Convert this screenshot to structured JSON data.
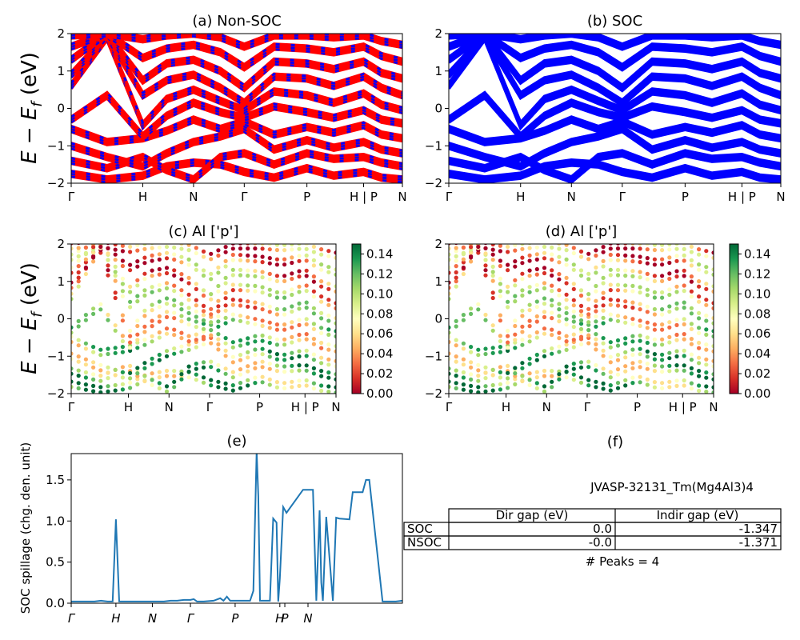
{
  "colors": {
    "nonsoc_line": "#ff0000",
    "nonsoc_dash": "#0000ff",
    "soc_line": "#0000ff",
    "spillage_line": "#1f77b4",
    "colormap": [
      "#a50026",
      "#d73027",
      "#f46d43",
      "#fdae61",
      "#fee08b",
      "#ffffbf",
      "#d9ef8b",
      "#a6d96a",
      "#66bd63",
      "#1a9850",
      "#006837"
    ]
  },
  "figure": {
    "ylabel": "E − E",
    "ylabel_sub": "f",
    "ylabel_unit": " (eV)"
  },
  "chart_data": [
    {
      "panel": "a",
      "type": "line",
      "title": "(a) Non-SOC",
      "ylim": [
        -2,
        2
      ],
      "yticks": [
        "2",
        "1",
        "0",
        "−1",
        "−2"
      ],
      "xticks": [
        {
          "label": "Γ",
          "x": 0.0
        },
        {
          "label": "H",
          "x": 1.2
        },
        {
          "label": "N",
          "x": 2.05
        },
        {
          "label": "Γ",
          "x": 2.9
        },
        {
          "label": "P",
          "x": 3.95
        },
        {
          "label": "H | P",
          "x": 4.9
        },
        {
          "label": "N",
          "x": 5.55
        }
      ],
      "xmax": 5.55,
      "bands": [
        [
          [
            0,
            -1.75
          ],
          [
            0.6,
            -1.9
          ],
          [
            1.2,
            -1.8
          ],
          [
            1.6,
            -1.55
          ],
          [
            2.05,
            -1.45
          ],
          [
            2.5,
            -1.5
          ],
          [
            2.9,
            -1.7
          ],
          [
            3.4,
            -1.85
          ],
          [
            3.95,
            -1.6
          ],
          [
            4.4,
            -1.8
          ],
          [
            4.9,
            -1.7
          ],
          [
            5.2,
            -1.85
          ],
          [
            5.55,
            -1.9
          ]
        ],
        [
          [
            0,
            -1.4
          ],
          [
            0.6,
            -1.6
          ],
          [
            1.2,
            -1.3
          ],
          [
            1.6,
            -1.65
          ],
          [
            2.05,
            -1.9
          ],
          [
            2.5,
            -1.3
          ],
          [
            2.9,
            -1.2
          ],
          [
            3.4,
            -1.5
          ],
          [
            3.95,
            -1.2
          ],
          [
            4.4,
            -1.35
          ],
          [
            4.9,
            -1.3
          ],
          [
            5.2,
            -1.45
          ],
          [
            5.55,
            -1.55
          ]
        ],
        [
          [
            0,
            -1.0
          ],
          [
            0.6,
            -1.3
          ],
          [
            1.2,
            -1.55
          ],
          [
            1.6,
            -1.2
          ],
          [
            2.05,
            -0.9
          ],
          [
            2.5,
            -0.75
          ],
          [
            2.9,
            -0.55
          ],
          [
            3.4,
            -1.1
          ],
          [
            3.95,
            -0.85
          ],
          [
            4.4,
            -1.05
          ],
          [
            4.9,
            -0.9
          ],
          [
            5.2,
            -1.1
          ],
          [
            5.55,
            -1.2
          ]
        ],
        [
          [
            0,
            -0.55
          ],
          [
            0.6,
            -0.9
          ],
          [
            1.2,
            -0.8
          ],
          [
            1.6,
            -0.6
          ],
          [
            2.05,
            -0.3
          ],
          [
            2.5,
            -0.55
          ],
          [
            2.9,
            -0.35
          ],
          [
            3.4,
            -0.7
          ],
          [
            3.95,
            -0.5
          ],
          [
            4.4,
            -0.65
          ],
          [
            4.9,
            -0.45
          ],
          [
            5.2,
            -0.7
          ],
          [
            5.55,
            -0.8
          ]
        ],
        [
          [
            0,
            -0.3
          ],
          [
            0.6,
            0.35
          ],
          [
            1.2,
            -0.75
          ],
          [
            1.6,
            -0.2
          ],
          [
            2.05,
            0.15
          ],
          [
            2.5,
            -0.1
          ],
          [
            2.9,
            -0.25
          ],
          [
            3.4,
            0.05
          ],
          [
            3.95,
            -0.1
          ],
          [
            4.4,
            -0.25
          ],
          [
            4.9,
            -0.05
          ],
          [
            5.2,
            -0.3
          ],
          [
            5.55,
            -0.4
          ]
        ],
        [
          [
            0,
            0.6
          ],
          [
            0.6,
            1.9
          ],
          [
            1.2,
            -0.45
          ],
          [
            1.6,
            0.25
          ],
          [
            2.05,
            0.5
          ],
          [
            2.5,
            0.2
          ],
          [
            2.9,
            -0.05
          ],
          [
            3.4,
            0.45
          ],
          [
            3.95,
            0.35
          ],
          [
            4.4,
            0.15
          ],
          [
            4.9,
            0.4
          ],
          [
            5.2,
            0.1
          ],
          [
            5.55,
            -0.05
          ]
        ],
        [
          [
            0,
            0.9
          ],
          [
            0.6,
            1.95
          ],
          [
            1.2,
            0.35
          ],
          [
            1.6,
            0.75
          ],
          [
            2.05,
            0.9
          ],
          [
            2.5,
            0.55
          ],
          [
            2.9,
            0.15
          ],
          [
            3.4,
            0.85
          ],
          [
            3.95,
            0.8
          ],
          [
            4.4,
            0.6
          ],
          [
            4.9,
            0.85
          ],
          [
            5.2,
            0.55
          ],
          [
            5.55,
            0.35
          ]
        ],
        [
          [
            0,
            1.3
          ],
          [
            0.6,
            2.0
          ],
          [
            1.2,
            0.75
          ],
          [
            1.6,
            1.2
          ],
          [
            2.05,
            1.3
          ],
          [
            2.5,
            1.0
          ],
          [
            2.9,
            0.55
          ],
          [
            3.4,
            1.25
          ],
          [
            3.95,
            1.2
          ],
          [
            4.4,
            1.05
          ],
          [
            4.9,
            1.25
          ],
          [
            5.2,
            0.95
          ],
          [
            5.55,
            0.8
          ]
        ],
        [
          [
            0,
            1.65
          ],
          [
            0.6,
            2.0
          ],
          [
            1.2,
            1.35
          ],
          [
            1.6,
            1.6
          ],
          [
            2.05,
            1.7
          ],
          [
            2.5,
            1.5
          ],
          [
            2.9,
            1.1
          ],
          [
            3.4,
            1.65
          ],
          [
            3.95,
            1.6
          ],
          [
            4.4,
            1.5
          ],
          [
            4.9,
            1.65
          ],
          [
            5.2,
            1.4
          ],
          [
            5.55,
            1.25
          ]
        ],
        [
          [
            0,
            1.95
          ],
          [
            0.6,
            2.0
          ],
          [
            1.2,
            1.85
          ],
          [
            1.6,
            1.95
          ],
          [
            2.05,
            2.0
          ],
          [
            2.5,
            1.9
          ],
          [
            2.9,
            1.65
          ],
          [
            3.4,
            1.95
          ],
          [
            3.95,
            1.95
          ],
          [
            4.4,
            1.9
          ],
          [
            4.9,
            1.95
          ],
          [
            5.2,
            1.8
          ],
          [
            5.55,
            1.7
          ]
        ]
      ]
    },
    {
      "panel": "b",
      "type": "line",
      "title": "(b) SOC",
      "ylim": [
        -2,
        2
      ],
      "yticks": [
        "2",
        "1",
        "0",
        "−1",
        "−2"
      ],
      "xticks": [
        {
          "label": "Γ",
          "x": 0.0
        },
        {
          "label": "H",
          "x": 1.2
        },
        {
          "label": "N",
          "x": 2.05
        },
        {
          "label": "Γ",
          "x": 2.9
        },
        {
          "label": "P",
          "x": 3.95
        },
        {
          "label": "H | P",
          "x": 4.9
        },
        {
          "label": "N",
          "x": 5.55
        }
      ],
      "xmax": 5.55,
      "same_bands_as": "a"
    },
    {
      "panel": "c",
      "type": "scatter",
      "title": "(c)  Al ['p']",
      "ylim": [
        -2,
        2
      ],
      "yticks": [
        "2",
        "1",
        "0",
        "−1",
        "−2"
      ],
      "xticks": [
        {
          "label": "Γ",
          "x": 0.0
        },
        {
          "label": "H",
          "x": 1.2
        },
        {
          "label": "N",
          "x": 2.05
        },
        {
          "label": "Γ",
          "x": 2.9
        },
        {
          "label": "P",
          "x": 3.95
        },
        {
          "label": "H | P",
          "x": 4.9
        },
        {
          "label": "N",
          "x": 5.55
        }
      ],
      "xmax": 5.55,
      "colorbar": {
        "min": 0.0,
        "max": 0.15,
        "ticks": [
          "0.14",
          "0.12",
          "0.10",
          "0.08",
          "0.06",
          "0.04",
          "0.02",
          "0.00"
        ]
      },
      "same_bands_as": "a"
    },
    {
      "panel": "d",
      "type": "scatter",
      "title": "(d) Al ['p']",
      "ylim": [
        -2,
        2
      ],
      "yticks": [
        "2",
        "1",
        "0",
        "−1",
        "−2"
      ],
      "xticks": [
        {
          "label": "Γ",
          "x": 0.0
        },
        {
          "label": "H",
          "x": 1.2
        },
        {
          "label": "N",
          "x": 2.05
        },
        {
          "label": "Γ",
          "x": 2.9
        },
        {
          "label": "P",
          "x": 3.95
        },
        {
          "label": "H | P",
          "x": 4.9
        },
        {
          "label": "N",
          "x": 5.55
        }
      ],
      "xmax": 5.55,
      "colorbar": {
        "min": 0.0,
        "max": 0.15,
        "ticks": [
          "0.14",
          "0.12",
          "0.10",
          "0.08",
          "0.06",
          "0.04",
          "0.02",
          "0.00"
        ]
      },
      "same_bands_as": "a"
    },
    {
      "panel": "e",
      "type": "line",
      "title": "(e)",
      "ylabel": "SOC spillage (chg. den. unit)",
      "ylim": [
        0,
        1.82
      ],
      "yticks": [
        {
          "label": "0.0",
          "v": 0.0
        },
        {
          "label": "0.5",
          "v": 0.5
        },
        {
          "label": "1.0",
          "v": 1.0
        },
        {
          "label": "1.5",
          "v": 1.5
        }
      ],
      "xlim": [
        0,
        100
      ],
      "xticks": [
        {
          "label": "Γ",
          "x": 0
        },
        {
          "label": "H",
          "x": 13.5
        },
        {
          "label": "N",
          "x": 24.5
        },
        {
          "label": "Γ",
          "x": 36
        },
        {
          "label": "P",
          "x": 49.5
        },
        {
          "label": "H",
          "x": 63
        },
        {
          "label": "P",
          "x": 64.5
        },
        {
          "label": "N",
          "x": 71.5
        }
      ],
      "x": [
        0,
        4,
        7,
        9,
        11,
        12,
        12.5,
        13.5,
        14.5,
        16,
        20,
        25,
        28,
        30,
        32,
        34,
        36,
        37,
        38,
        40,
        43,
        45,
        46,
        47,
        48,
        50,
        53,
        54,
        55,
        56,
        56.5,
        57,
        58,
        60,
        61,
        62,
        62.5,
        63,
        64,
        65,
        70,
        72,
        72.5,
        73,
        74,
        75,
        75.5,
        76,
        77,
        79,
        80,
        81,
        84,
        85,
        88,
        89,
        90,
        94,
        98,
        100
      ],
      "values": [
        0.02,
        0.02,
        0.02,
        0.03,
        0.02,
        0.02,
        0.02,
        1.02,
        0.02,
        0.02,
        0.02,
        0.02,
        0.02,
        0.03,
        0.03,
        0.04,
        0.04,
        0.05,
        0.02,
        0.02,
        0.03,
        0.06,
        0.03,
        0.08,
        0.03,
        0.03,
        0.03,
        0.03,
        0.15,
        1.85,
        1.3,
        0.03,
        0.03,
        0.03,
        1.03,
        0.98,
        0.02,
        0.3,
        1.17,
        1.1,
        1.38,
        1.38,
        1.38,
        1.38,
        0.03,
        1.13,
        0.25,
        0.03,
        1.05,
        0.03,
        1.04,
        1.03,
        1.02,
        1.35,
        1.35,
        1.5,
        1.5,
        0.02,
        0.02,
        0.03
      ]
    }
  ],
  "panel_f": {
    "title": "(f)",
    "identifier": "JVASP-32131_Tm(Mg4Al3)4",
    "table": {
      "col_labels": [
        "Dir gap (eV)",
        "Indir gap (eV)"
      ],
      "rows": [
        {
          "label": "SOC",
          "values": [
            "0.0",
            "-1.347"
          ]
        },
        {
          "label": "NSOC",
          "values": [
            "-0.0",
            "-1.371"
          ]
        }
      ]
    },
    "peaks_text": "# Peaks = 4"
  }
}
